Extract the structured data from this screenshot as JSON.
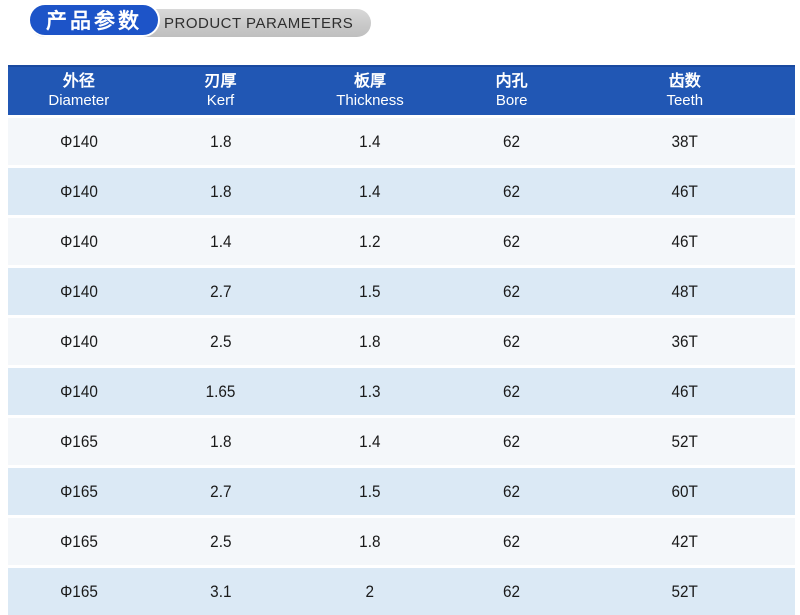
{
  "header": {
    "title_cn": "产品参数",
    "subtitle_en": "PRODUCT PARAMETERS"
  },
  "table": {
    "columns": [
      {
        "cn": "外径",
        "en": "Diameter"
      },
      {
        "cn": "刃厚",
        "en": "Kerf"
      },
      {
        "cn": "板厚",
        "en": "Thickness"
      },
      {
        "cn": "内孔",
        "en": "Bore"
      },
      {
        "cn": "齿数",
        "en": "Teeth"
      }
    ],
    "rows": [
      [
        "Φ140",
        "1.8",
        "1.4",
        "62",
        "38T"
      ],
      [
        "Φ140",
        "1.8",
        "1.4",
        "62",
        "46T"
      ],
      [
        "Φ140",
        "1.4",
        "1.2",
        "62",
        "46T"
      ],
      [
        "Φ140",
        "2.7",
        "1.5",
        "62",
        "48T"
      ],
      [
        "Φ140",
        "2.5",
        "1.8",
        "62",
        "36T"
      ],
      [
        "Φ140",
        "1.65",
        "1.3",
        "62",
        "46T"
      ],
      [
        "Φ165",
        "1.8",
        "1.4",
        "62",
        "52T"
      ],
      [
        "Φ165",
        "2.7",
        "1.5",
        "62",
        "60T"
      ],
      [
        "Φ165",
        "2.5",
        "1.8",
        "62",
        "42T"
      ],
      [
        "Φ165",
        "3.1",
        "2",
        "62",
        "52T"
      ]
    ]
  },
  "colors": {
    "accent_blue": "#1d54c8",
    "header_blue": "#2157b4",
    "row_light": "#f4f7fa",
    "row_alt": "#dbe9f5",
    "pill_gray": "#c9c9c9"
  }
}
